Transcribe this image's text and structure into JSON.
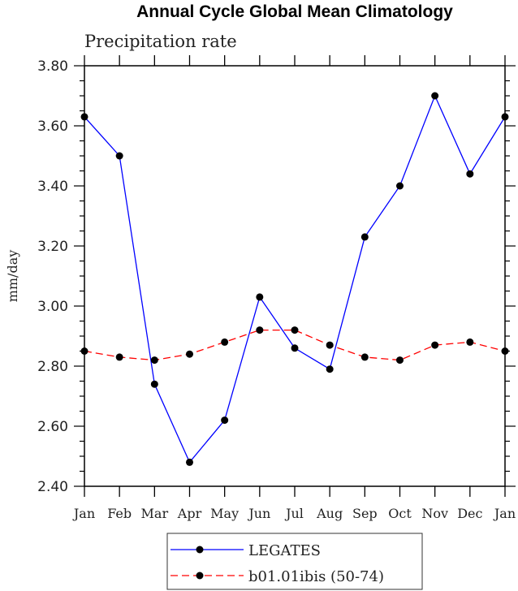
{
  "chart_data": {
    "type": "line",
    "title": "Annual Cycle Global Mean Climatology",
    "subtitle": "Precipitation rate",
    "xlabel": "",
    "ylabel": "mm/day",
    "categories": [
      "Jan",
      "Feb",
      "Mar",
      "Apr",
      "May",
      "Jun",
      "Jul",
      "Aug",
      "Sep",
      "Oct",
      "Nov",
      "Dec",
      "Jan"
    ],
    "ylim": [
      2.4,
      3.8
    ],
    "yticks": [
      "2.40",
      "2.60",
      "2.80",
      "3.00",
      "3.20",
      "3.40",
      "3.60",
      "3.80"
    ],
    "grid": false,
    "legend_placement": "bottom",
    "series": [
      {
        "name": "LEGATES",
        "color": "#0000ff",
        "style": "solid",
        "marker": "filled-circle",
        "values": [
          3.63,
          3.5,
          2.74,
          2.48,
          2.62,
          3.03,
          2.86,
          2.79,
          3.23,
          3.4,
          3.7,
          3.44,
          3.63
        ]
      },
      {
        "name": "b01.01ibis (50-74)",
        "color": "#ff0000",
        "style": "dashed",
        "marker": "filled-circle",
        "values": [
          2.85,
          2.83,
          2.82,
          2.84,
          2.88,
          2.92,
          2.92,
          2.87,
          2.83,
          2.82,
          2.87,
          2.88,
          2.85
        ]
      }
    ]
  }
}
